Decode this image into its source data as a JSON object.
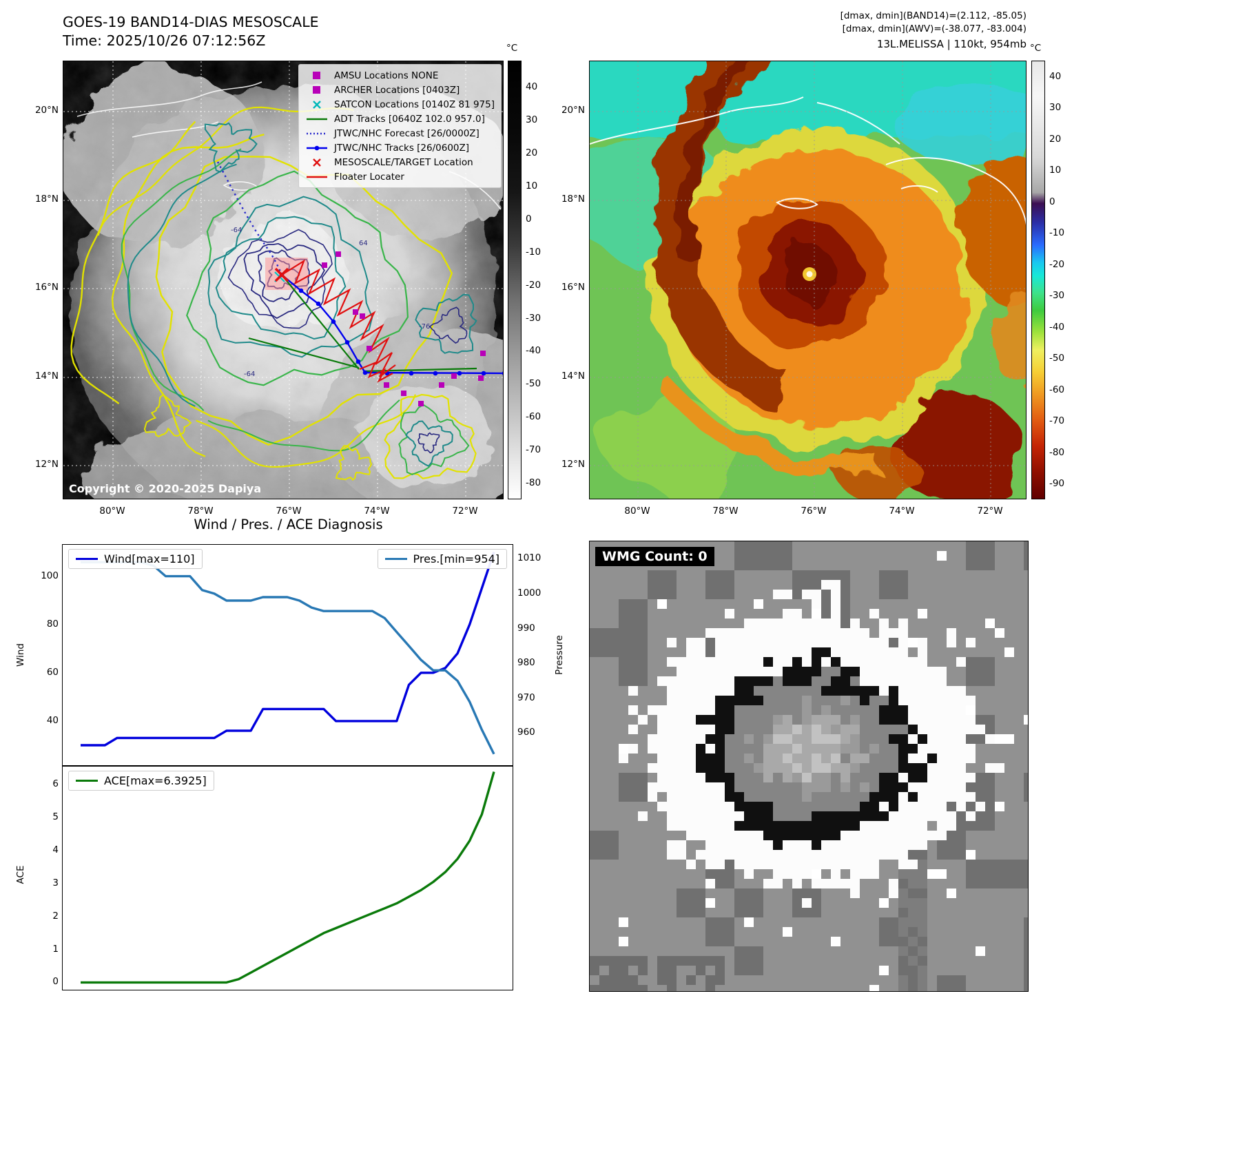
{
  "panel_band14": {
    "title": "GOES-19 BAND14-DIAS MESOSCALE",
    "time_line": "Time: 2025/10/26 07:12:56Z",
    "copyright": "Copyright © 2020-2025 Dapiya",
    "legend": [
      {
        "label": "AMSU Locations NONE",
        "marker": "square",
        "color": "#b800b8"
      },
      {
        "label": "ARCHER Locations [0403Z]",
        "marker": "square",
        "color": "#b800b8"
      },
      {
        "label": "SATCON Locations [0140Z 81 975]",
        "marker": "x",
        "color": "#00b8b8"
      },
      {
        "label": "ADT Tracks [0640Z 102.0 957.0]",
        "marker": "line",
        "color": "#0a7a0a"
      },
      {
        "label": "JTWC/NHC Forecast [26/0000Z]",
        "marker": "dotted",
        "color": "#2a2acc"
      },
      {
        "label": "JTWC/NHC Tracks [26/0600Z]",
        "marker": "line-dot",
        "color": "#0000ee"
      },
      {
        "label": "MESOSCALE/TARGET Location",
        "marker": "x",
        "color": "#e01010"
      },
      {
        "label": "Floater Locater",
        "marker": "line",
        "color": "#e01010"
      }
    ],
    "lat_ticks": [
      "20°N",
      "18°N",
      "16°N",
      "14°N",
      "12°N"
    ],
    "lon_ticks": [
      "80°W",
      "78°W",
      "76°W",
      "74°W",
      "72°W"
    ],
    "colorbar": {
      "unit": "°C",
      "ticks": [
        40,
        30,
        20,
        10,
        0,
        -10,
        -20,
        -30,
        -40,
        -50,
        -60,
        -70,
        -80
      ],
      "range": [
        48,
        -85
      ]
    },
    "contour_labels": [
      "-64",
      "64",
      "-76",
      "-64"
    ],
    "contour_colors": [
      "#e2e200",
      "#39b54a",
      "#1f8a8a",
      "#2a2a80"
    ]
  },
  "panel_awv": {
    "header_lines": [
      "[dmax, dmin](BAND14)=(2.112, -85.05)",
      "[dmax, dmin](AWV)=(-38.077, -83.004)",
      "13L.MELISSA | 110kt, 954mb"
    ],
    "lat_ticks": [
      "20°N",
      "18°N",
      "16°N",
      "14°N",
      "12°N"
    ],
    "lon_ticks": [
      "80°W",
      "78°W",
      "76°W",
      "74°W",
      "72°W"
    ],
    "colorbar": {
      "unit": "°C",
      "ticks": [
        40,
        30,
        20,
        10,
        0,
        -10,
        -20,
        -30,
        -40,
        -50,
        -60,
        -70,
        -80,
        -90
      ],
      "range": [
        45,
        -95
      ]
    }
  },
  "wmg": {
    "label": "WMG Count: 0"
  },
  "chart_data": [
    {
      "type": "line",
      "title": "Wind / Pres. / ACE Diagnosis",
      "series": [
        {
          "name": "Wind[max=110]",
          "color": "#0000dd",
          "axis": "left",
          "values": [
            30,
            30,
            30,
            33,
            33,
            33,
            33,
            33,
            33,
            33,
            33,
            33,
            36,
            36,
            36,
            45,
            45,
            45,
            45,
            45,
            45,
            40,
            40,
            40,
            40,
            40,
            40,
            55,
            60,
            60,
            62,
            68,
            80,
            95,
            110
          ]
        },
        {
          "name": "Pres.[min=954]",
          "color": "#2878b4",
          "axis": "right",
          "values": [
            1009,
            1009,
            1009,
            1009,
            1009,
            1009,
            1008,
            1005,
            1005,
            1005,
            1001,
            1000,
            998,
            998,
            998,
            999,
            999,
            999,
            998,
            996,
            995,
            995,
            995,
            995,
            995,
            993,
            989,
            985,
            981,
            978,
            978,
            975,
            969,
            961,
            954
          ]
        }
      ],
      "left_axis": {
        "label": "Wind",
        "ticks": [
          40,
          60,
          80,
          100
        ],
        "range": [
          22,
          113
        ]
      },
      "right_axis": {
        "label": "Pressure",
        "ticks": [
          960,
          970,
          980,
          990,
          1000,
          1010
        ],
        "range": [
          951,
          1014
        ]
      }
    },
    {
      "type": "line",
      "series": [
        {
          "name": "ACE[max=6.3925]",
          "color": "#0a7a0a",
          "axis": "left",
          "values": [
            0,
            0,
            0,
            0,
            0,
            0,
            0,
            0,
            0,
            0,
            0,
            0,
            0,
            0.1,
            0.3,
            0.5,
            0.7,
            0.9,
            1.1,
            1.3,
            1.5,
            1.65,
            1.8,
            1.95,
            2.1,
            2.25,
            2.4,
            2.6,
            2.8,
            3.05,
            3.35,
            3.75,
            4.3,
            5.1,
            6.3925
          ]
        }
      ],
      "left_axis": {
        "label": "ACE",
        "ticks": [
          0,
          1,
          2,
          3,
          4,
          5,
          6
        ],
        "range": [
          -0.2,
          6.55
        ]
      }
    }
  ]
}
